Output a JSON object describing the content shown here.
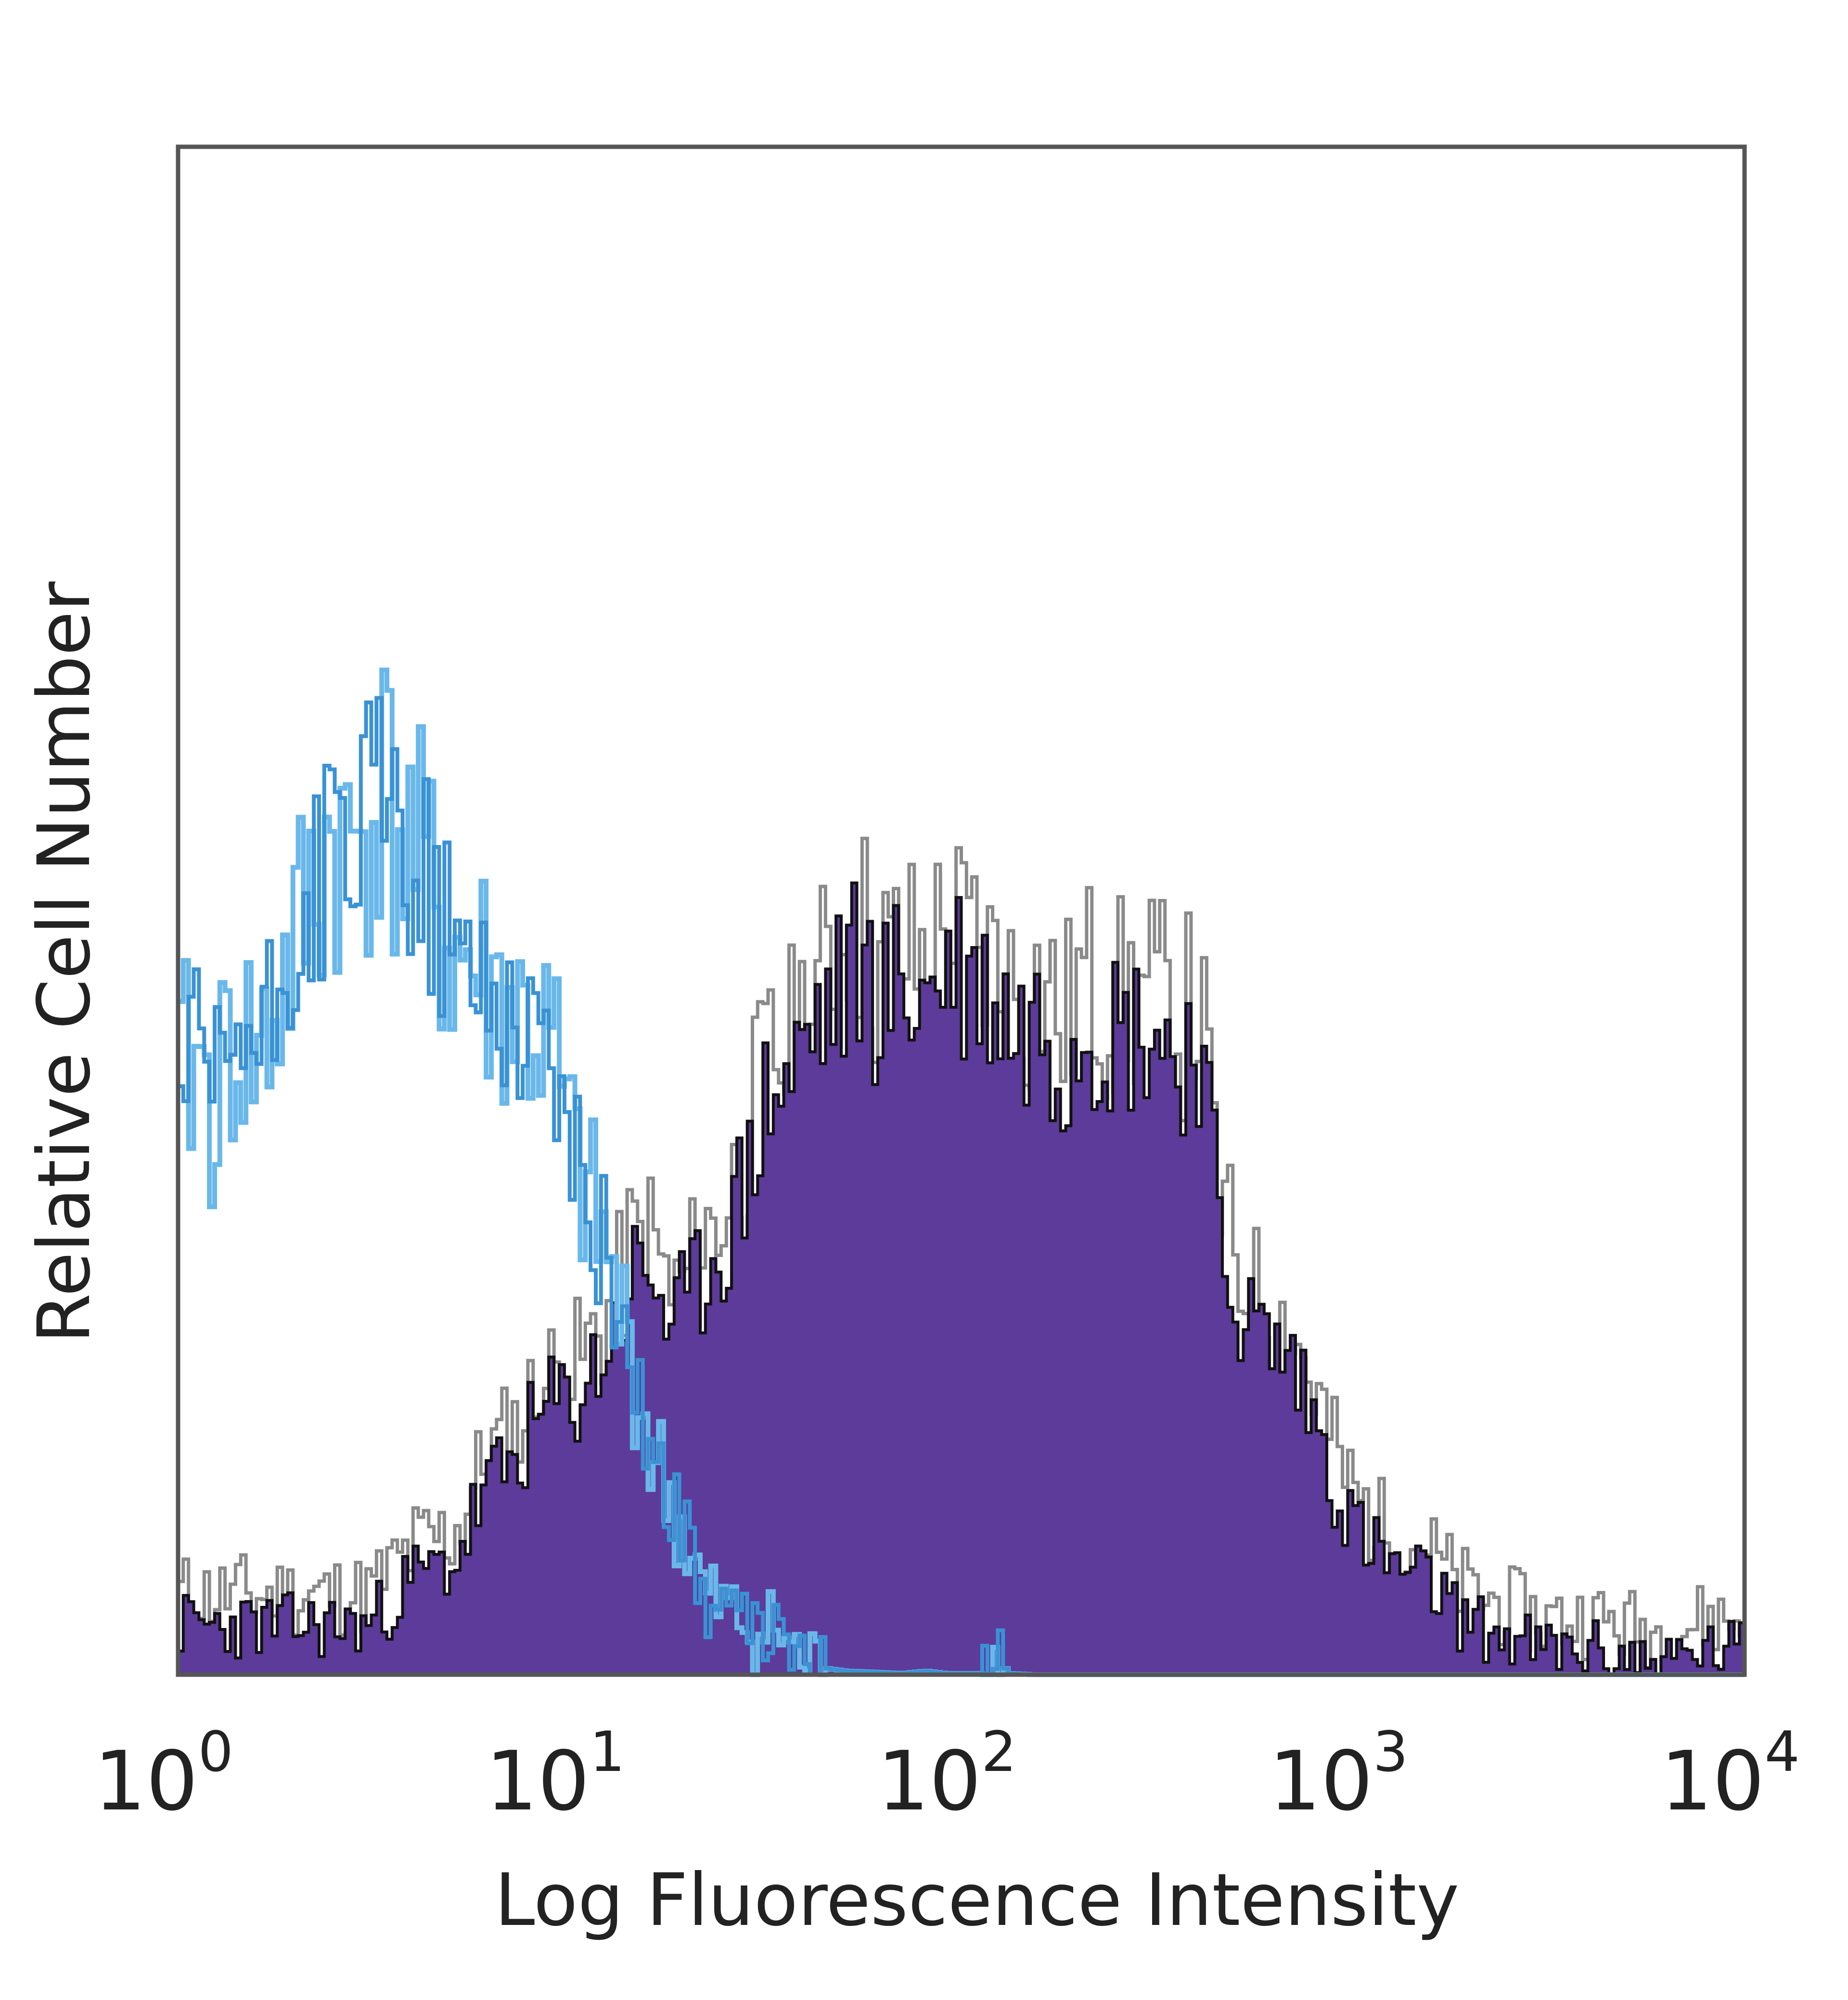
{
  "chart_data": {
    "type": "area",
    "xscale": "log",
    "xlim": [
      1,
      10000
    ],
    "ylim": [
      0,
      100
    ],
    "xlabel": "Log Fluorescence Intensity",
    "ylabel": "Relative Cell Number",
    "x_ticks": [
      {
        "base": "10",
        "exp": "0",
        "value": 1
      },
      {
        "base": "10",
        "exp": "1",
        "value": 10
      },
      {
        "base": "10",
        "exp": "2",
        "value": 100
      },
      {
        "base": "10",
        "exp": "3",
        "value": 1000
      },
      {
        "base": "10",
        "exp": "4",
        "value": 10000
      }
    ],
    "grid": false,
    "legend": "none",
    "colors": {
      "stained_fill": "#5c3b9a",
      "stained_edge": "#111111",
      "stained_noise": "#8a8a8a",
      "control_line": "#3a92d4",
      "control_line_light": "#6ab8ea",
      "frame": "#555555"
    },
    "series": [
      {
        "style": "filled",
        "x": [
          1,
          1.5,
          2,
          3,
          4,
          5,
          6,
          7,
          8,
          9,
          10,
          11,
          12,
          13,
          14,
          16,
          18,
          20,
          22,
          25,
          28,
          30,
          33,
          36,
          40,
          45,
          50,
          55,
          60,
          70,
          80,
          90,
          100,
          120,
          140,
          160,
          180,
          200,
          250,
          300,
          350,
          400,
          450,
          500,
          600,
          700,
          800,
          900,
          1000,
          1200,
          1400,
          1600,
          1800,
          2000,
          3000,
          4000,
          6000,
          8000,
          10000
        ],
        "y": [
          4,
          4,
          4,
          4,
          8,
          9,
          15,
          17,
          20,
          22,
          22,
          24,
          26,
          28,
          32,
          33,
          28,
          30,
          33,
          36,
          40,
          45,
          48,
          48,
          52,
          54,
          56,
          58,
          55,
          56,
          55,
          58,
          57,
          55,
          52,
          54,
          50,
          54,
          52,
          53,
          50,
          52,
          36,
          30,
          27,
          25,
          20,
          15,
          12,
          9,
          8,
          7,
          5,
          4,
          2,
          2,
          1,
          2,
          2
        ]
      },
      {
        "style": "line",
        "x": [
          1,
          1.1,
          1.2,
          1.4,
          1.6,
          1.8,
          2,
          2.2,
          2.4,
          2.7,
          3,
          3.3,
          3.6,
          4,
          4.5,
          5,
          5.5,
          6,
          7,
          8,
          9,
          10,
          11,
          12,
          13,
          14,
          15,
          16,
          18,
          20,
          22,
          25,
          28,
          30,
          33,
          36,
          40,
          45,
          50,
          60,
          70,
          80,
          90,
          100,
          110,
          120,
          130,
          150,
          200,
          300,
          1000,
          10000
        ],
        "y": [
          48,
          50,
          46,
          52,
          50,
          55,
          60,
          63,
          68,
          66,
          70,
          72,
          68,
          66,
          62,
          58,
          58,
          56,
          54,
          52,
          50,
          42,
          38,
          35,
          30,
          27,
          22,
          18,
          14,
          10,
          6,
          5,
          4,
          3,
          4,
          2,
          1,
          0.5,
          0.3,
          0.2,
          0.1,
          0.3,
          0.1,
          0.1,
          0.1,
          2,
          0.1,
          0,
          0,
          0,
          0,
          0
        ]
      }
    ]
  }
}
